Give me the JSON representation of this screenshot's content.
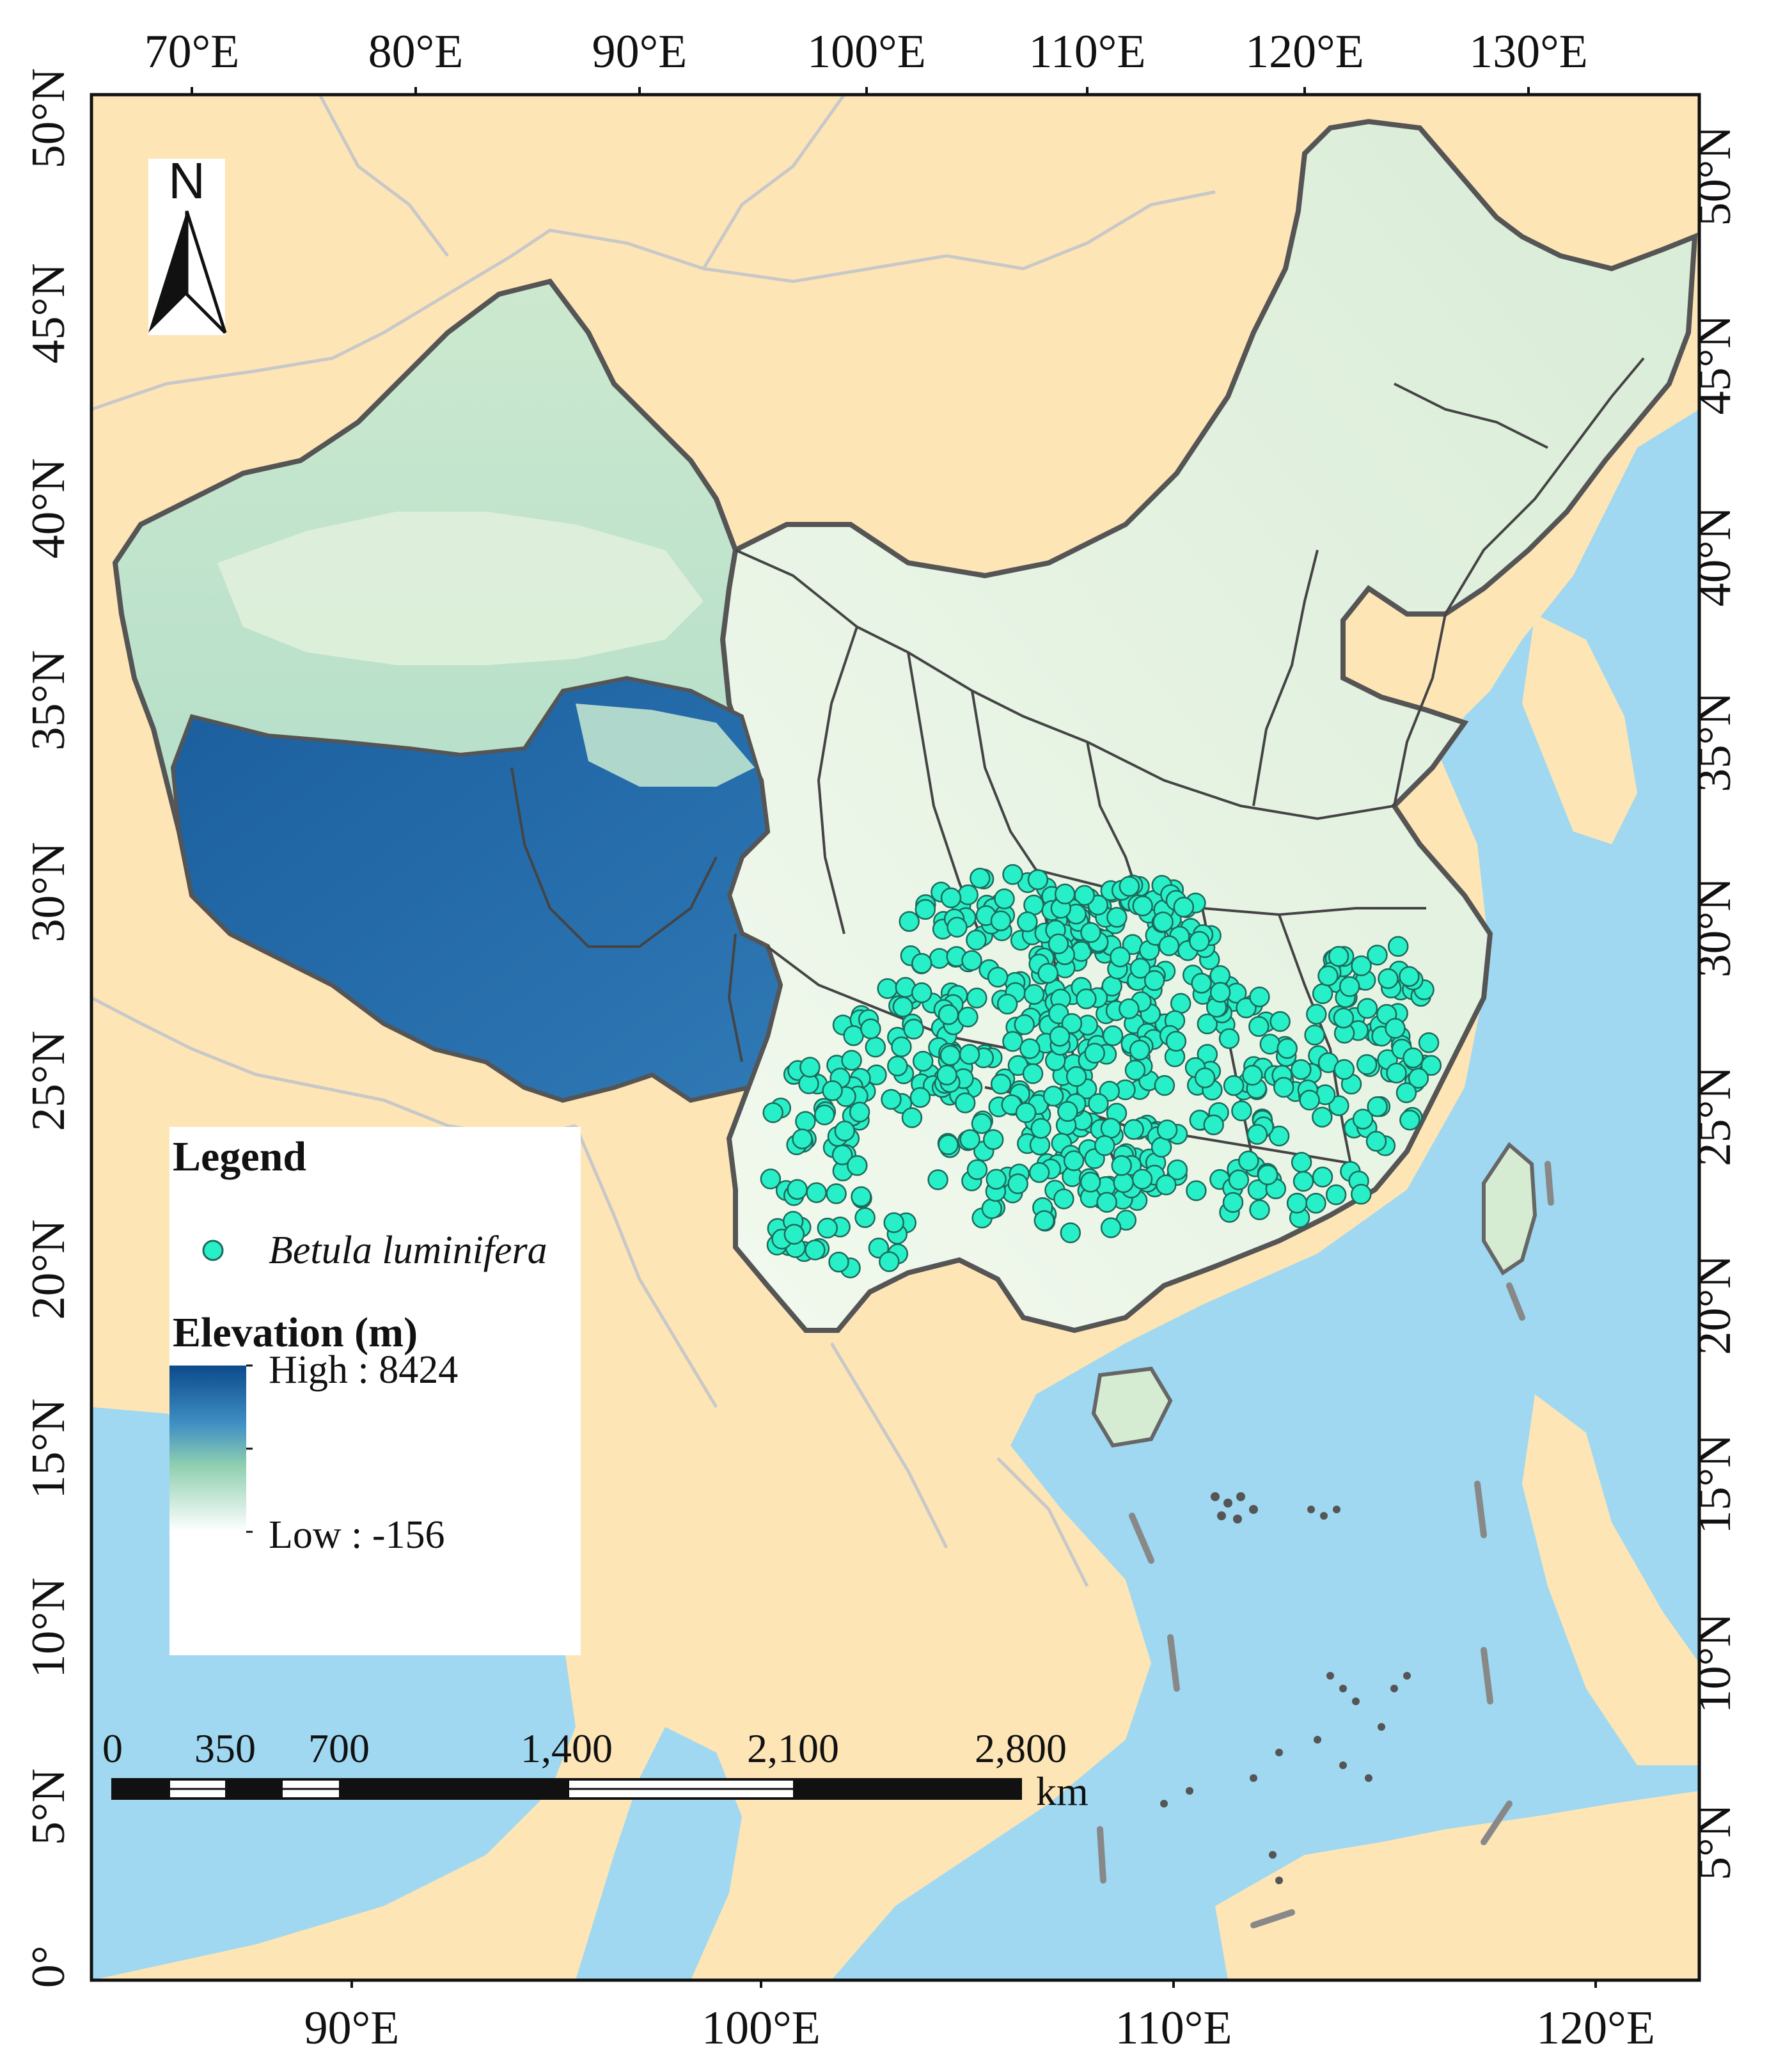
{
  "map": {
    "top_axis_labels": [
      "70°E",
      "80°E",
      "90°E",
      "100°E",
      "110°E",
      "120°E",
      "130°E"
    ],
    "bottom_axis_labels": [
      "90°E",
      "100°E",
      "110°E",
      "120°E"
    ],
    "left_axis_labels": [
      "50°N",
      "45°N",
      "40°N",
      "35°N",
      "30°N",
      "25°N",
      "20°N",
      "15°N",
      "10°N",
      "5°N",
      "0°"
    ],
    "right_axis_labels": [
      "50°N",
      "45°N",
      "40°N",
      "35°N",
      "30°N",
      "25°N",
      "20°N",
      "15°N",
      "10°N",
      "5°N"
    ],
    "north_arrow_label": "N",
    "colors": {
      "land_background": "#fde5b6",
      "sea": "#9fd8f0",
      "occurrence_point": "#27f0c8",
      "elevation_high": "#0b4a8c",
      "elevation_mid": "#8fcfb0",
      "elevation_low": "#ffffff"
    }
  },
  "legend": {
    "title": "Legend",
    "species_label": "Betula luminifera",
    "elevation_title": "Elevation (m)",
    "high_label": "High : 8424",
    "low_label": "Low : -156"
  },
  "scale_bar": {
    "labels": [
      "0",
      "350",
      "700",
      "1,400",
      "2,100",
      "2,800"
    ],
    "unit": "km"
  }
}
